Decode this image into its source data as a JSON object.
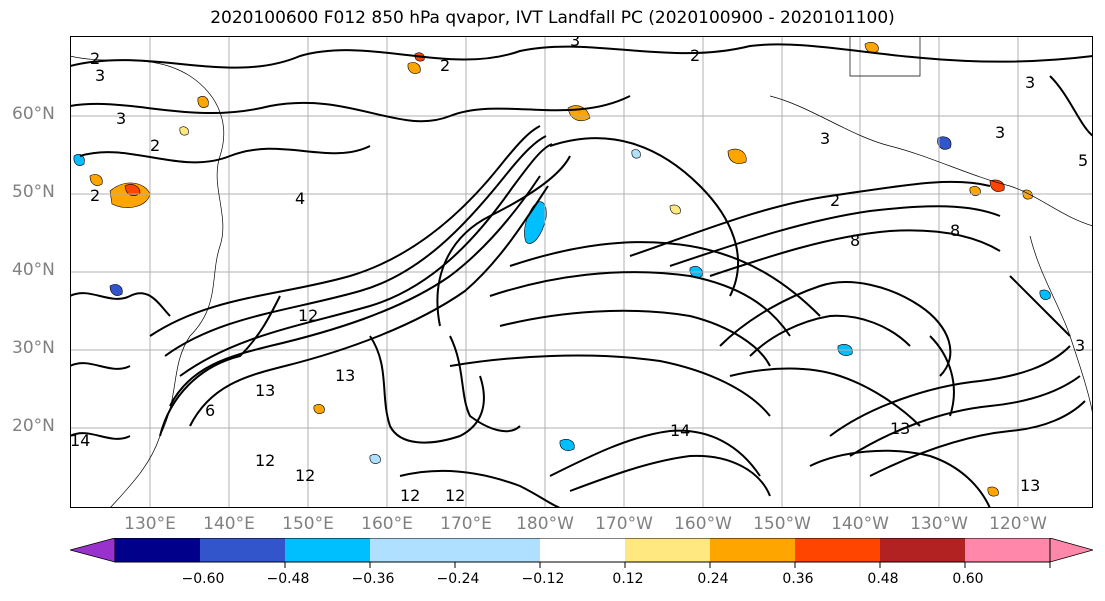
{
  "title": "2020100600 F012 850 hPa qvapor, IVT Landfall PC (2020100900 - 2020101100)",
  "map": {
    "projection": "PlateCarree",
    "extent": {
      "lon_west": "120°E",
      "lon_east": "115°W",
      "lat_south": "10°N",
      "lat_north": "70°N"
    },
    "gridlines": true,
    "coastlines": true,
    "latitude_labels": [
      "60°N",
      "50°N",
      "40°N",
      "30°N",
      "20°N"
    ],
    "longitude_labels": [
      "130°E",
      "140°E",
      "150°E",
      "160°E",
      "170°E",
      "180°W",
      "170°W",
      "160°W",
      "150°W",
      "140°W",
      "130°W",
      "120°W"
    ],
    "contour_color": "#000000",
    "contour_labels": [
      "2",
      "3",
      "2",
      "3",
      "2",
      "2",
      "3",
      "4",
      "3",
      "2",
      "3",
      "5",
      "3",
      "6",
      "8",
      "12",
      "13",
      "14",
      "12",
      "12",
      "12",
      "13",
      "13",
      "13",
      "14",
      "8",
      "12",
      "2",
      "3"
    ]
  },
  "colorbar": {
    "extend": "both",
    "colors": [
      "#9932cc",
      "#00008b",
      "#3355cc",
      "#00bfff",
      "#b0e0ff",
      "#ffffff",
      "#ffe880",
      "#ffa500",
      "#ff4500",
      "#b22222",
      "#ff88aa"
    ],
    "ticks": [
      "−0.60",
      "−0.48",
      "−0.36",
      "−0.24",
      "−0.12",
      "0.12",
      "0.24",
      "0.36",
      "0.48",
      "0.60"
    ]
  }
}
